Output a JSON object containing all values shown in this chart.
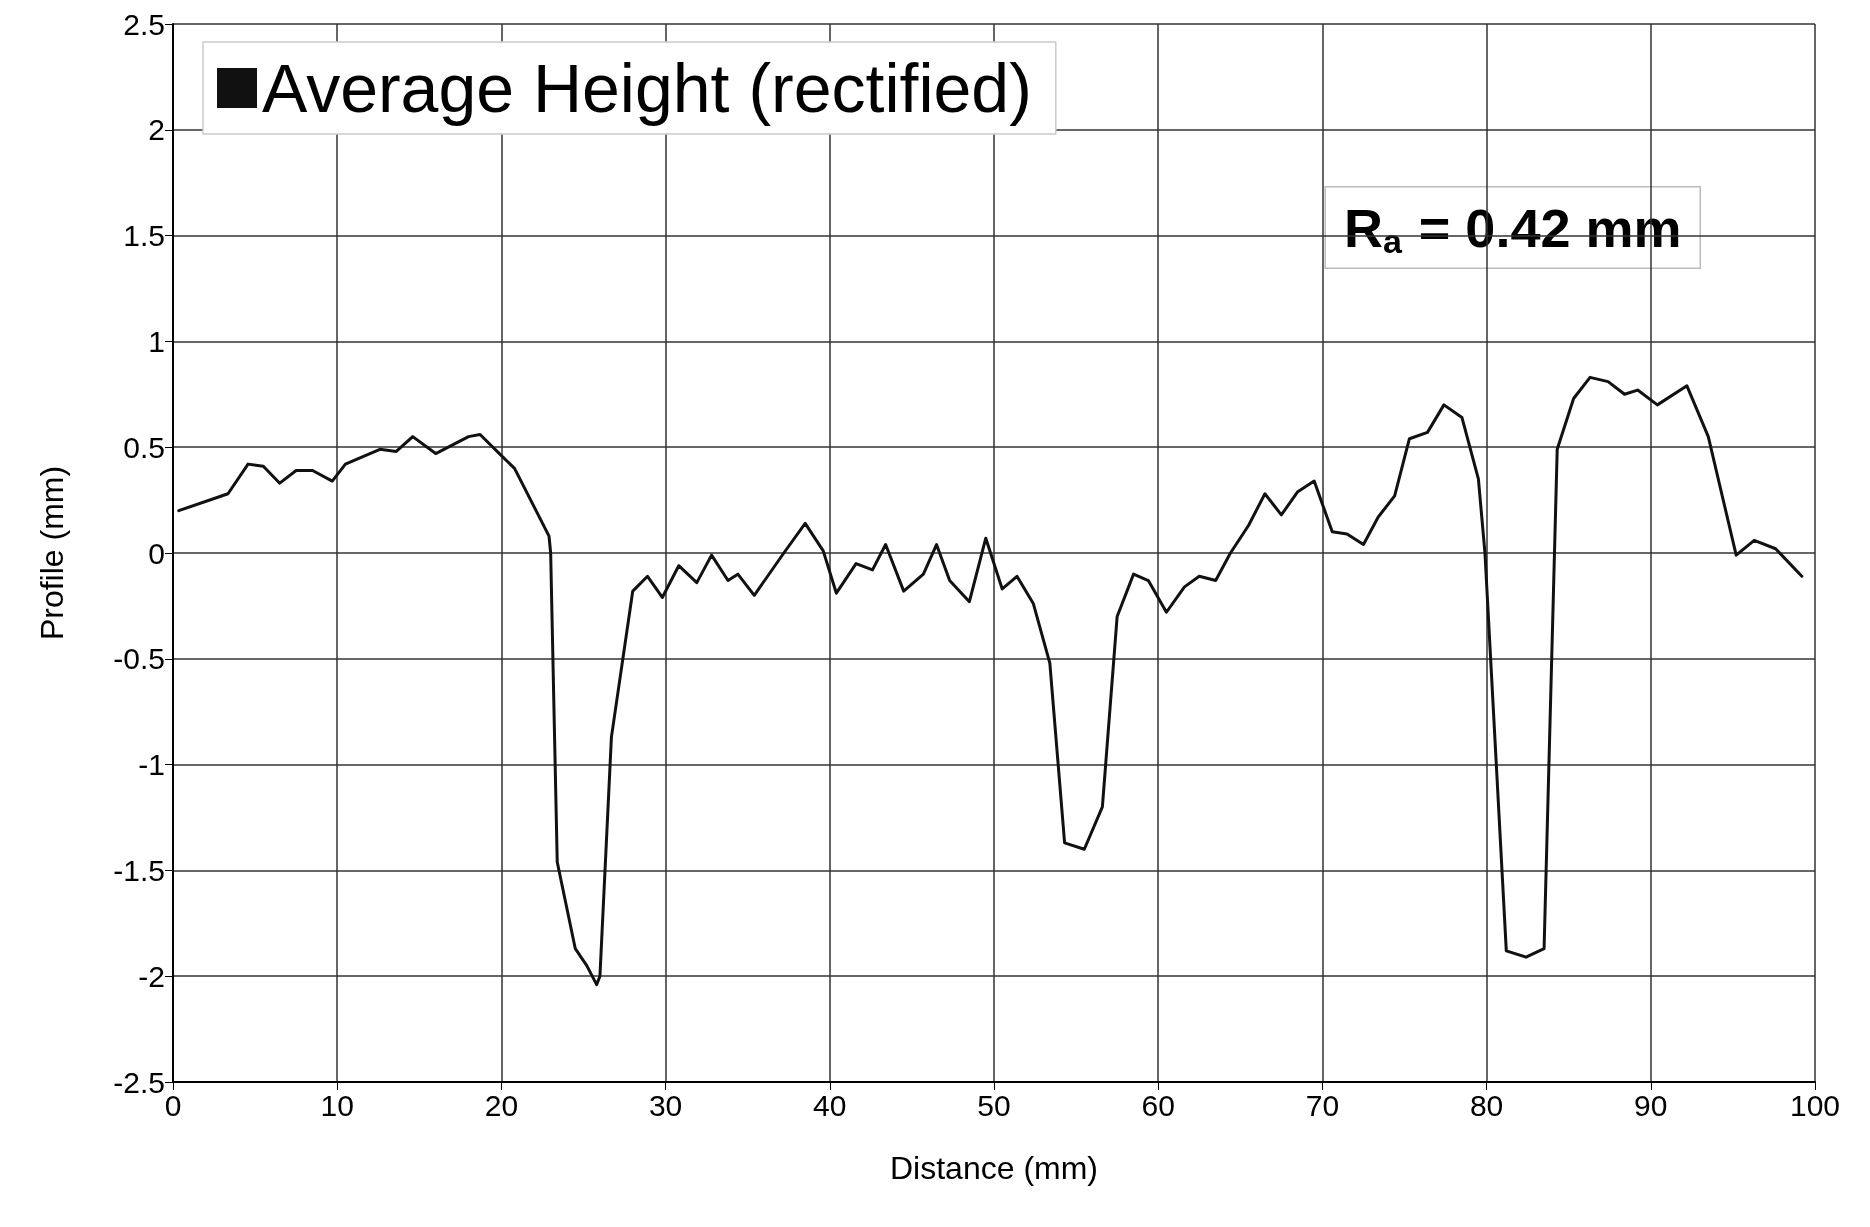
{
  "chart_data": {
    "type": "line",
    "xlabel": "Distance (mm)",
    "ylabel": "Profile (mm)",
    "annotations": [
      "R$_{a}$ = 0.42 mm"
    ],
    "xlim": [
      0,
      100
    ],
    "xticks": [
      0,
      10,
      20,
      30,
      40,
      50,
      60,
      70,
      80,
      90,
      100
    ],
    "ylim": [
      -2.5,
      2.5
    ],
    "yticks": [
      -2.5,
      -2,
      -1.5,
      -1,
      -0.5,
      0,
      0.5,
      1,
      1.5,
      2,
      2.5
    ],
    "grid": true,
    "legend": "top left",
    "marker": "none",
    "line_style": "solid",
    "series": [
      {
        "name": "Average Height (rectified)",
        "color": "#111111",
        "x": [
          0.35,
          3.35,
          4.57,
          5.5,
          6.5,
          7.5,
          8.5,
          9.7,
          10.5,
          12.6,
          13.6,
          14.6,
          16.0,
          18.0,
          18.7,
          20.0,
          20.8,
          22.9,
          23.0,
          23.4,
          24.5,
          25.2,
          25.8,
          26.0,
          26.7,
          28.0,
          28.9,
          29.8,
          30.8,
          31.9,
          32.8,
          33.8,
          34.4,
          35.4,
          37.2,
          38.5,
          39.6,
          40.4,
          41.6,
          42.6,
          43.4,
          44.5,
          45.7,
          46.5,
          47.3,
          48.5,
          49.5,
          50.5,
          51.4,
          52.4,
          53.4,
          54.3,
          55.5,
          56.6,
          57.5,
          58.5,
          59.4,
          60.5,
          61.6,
          62.5,
          63.5,
          64.4,
          65.5,
          66.5,
          67.5,
          68.5,
          69.5,
          70.6,
          71.5,
          72.5,
          73.4,
          74.4,
          75.3,
          76.4,
          77.4,
          78.5,
          79.5,
          79.9,
          81.2,
          82.4,
          83.5,
          84.3,
          85.3,
          86.3,
          87.4,
          88.4,
          89.2,
          90.4,
          92.2,
          93.5,
          95.2,
          96.3,
          97.6,
          99.2
        ],
        "values": [
          0.2,
          0.28,
          0.42,
          0.41,
          0.33,
          0.39,
          0.39,
          0.34,
          0.42,
          0.49,
          0.48,
          0.55,
          0.47,
          0.55,
          0.56,
          0.46,
          0.4,
          0.08,
          0,
          -1.46,
          -1.87,
          -1.95,
          -2.04,
          -2.0,
          -0.87,
          -0.18,
          -0.11,
          -0.21,
          -0.06,
          -0.14,
          -0.01,
          -0.13,
          -0.1,
          -0.2,
          0,
          0.14,
          0.01,
          -0.19,
          -0.05,
          -0.08,
          0.04,
          -0.18,
          -0.1,
          0.04,
          -0.13,
          -0.23,
          0.07,
          -0.17,
          -0.11,
          -0.24,
          -0.52,
          -1.37,
          -1.4,
          -1.2,
          -0.3,
          -0.1,
          -0.13,
          -0.28,
          -0.16,
          -0.11,
          -0.13,
          0,
          0.13,
          0.28,
          0.18,
          0.29,
          0.34,
          0.1,
          0.09,
          0.04,
          0.17,
          0.27,
          0.54,
          0.57,
          0.7,
          0.64,
          0.35,
          0,
          -1.88,
          -1.91,
          -1.87,
          0.49,
          0.73,
          0.83,
          0.81,
          0.75,
          0.77,
          0.7,
          0.79,
          0.55,
          -0.01,
          0.06,
          0.02,
          -0.11
        ]
      }
    ]
  }
}
